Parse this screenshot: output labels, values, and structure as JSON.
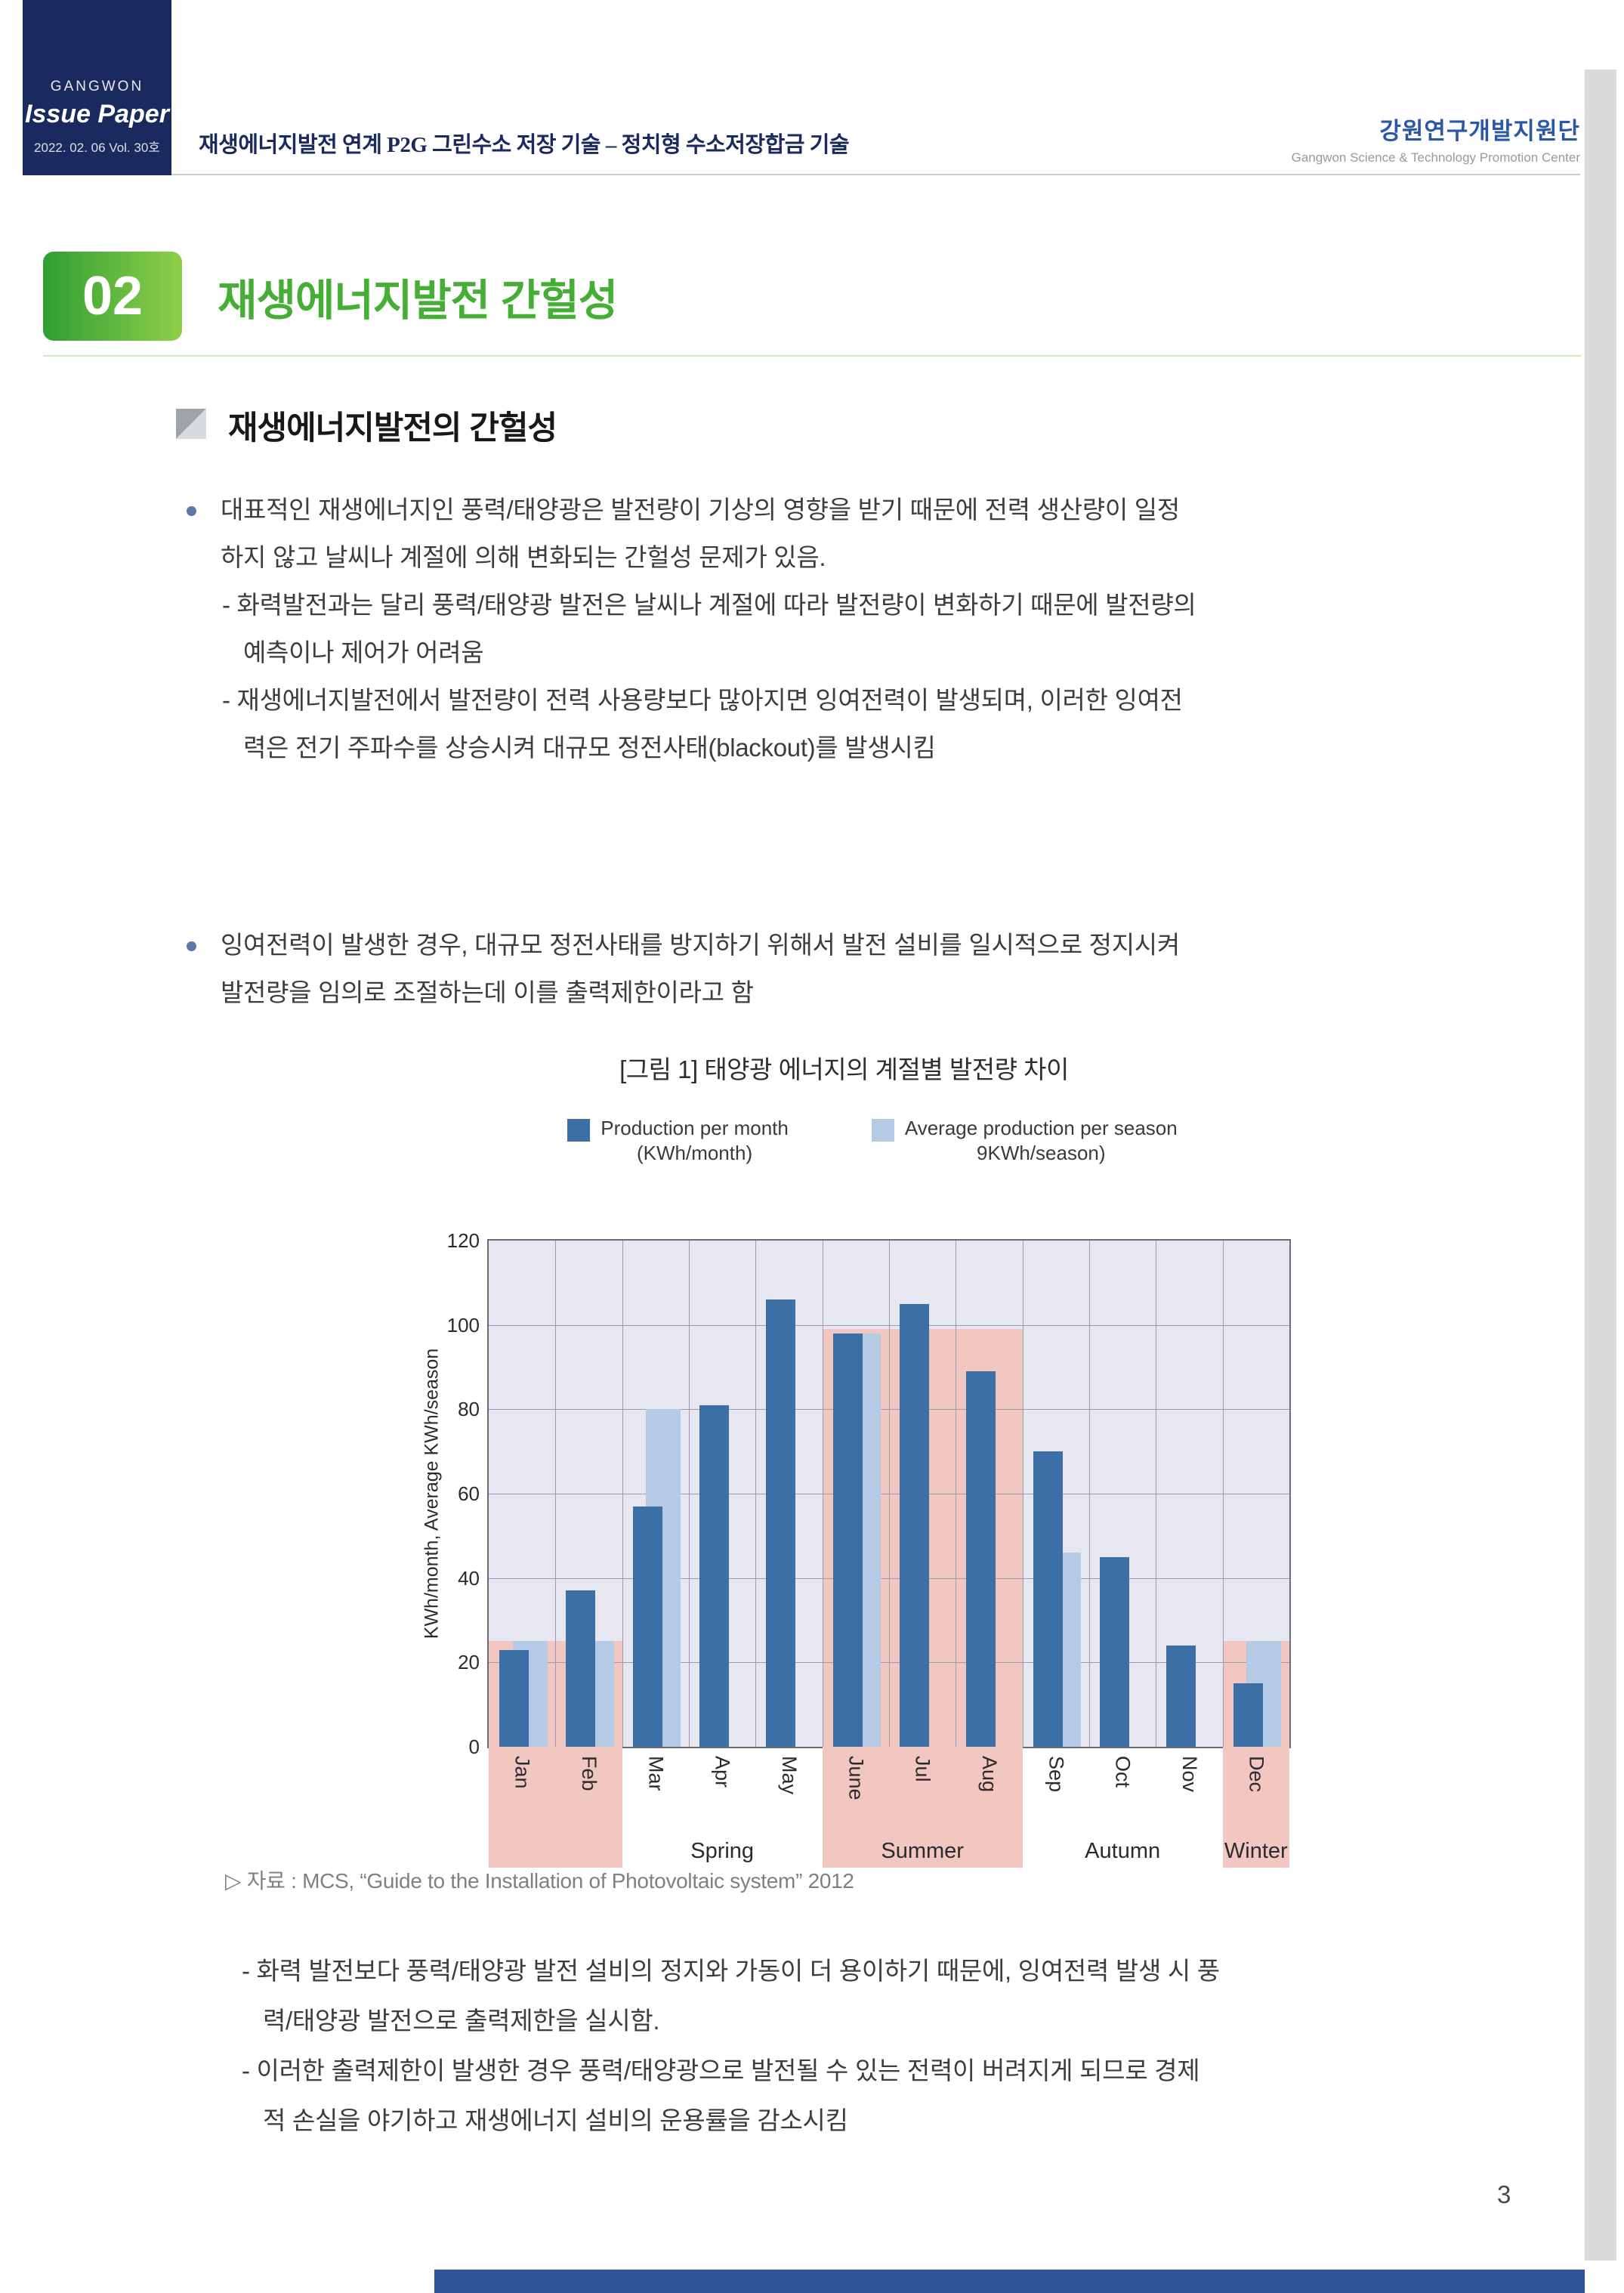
{
  "header": {
    "badge": {
      "brand": "GANGWON",
      "name": "Issue Paper",
      "meta": "2022. 02. 06  Vol. 30호"
    },
    "doc_title": "재생에너지발전 연계 P2G 그린수소 저장 기술 – 정치형 수소저장합금 기술",
    "org_kr": "강원연구개발지원단",
    "org_en": "Gangwon Science & Technology Promotion Center"
  },
  "section": {
    "number": "02",
    "title": "재생에너지발전 간헐성"
  },
  "subsection_title": "재생에너지발전의 간헐성",
  "bullet1_lines": [
    {
      "type": "main",
      "text": "대표적인 재생에너지인 풍력/태양광은 발전량이 기상의 영향을 받기 때문에 전력 생산량이 일정"
    },
    {
      "type": "main",
      "text": "하지 않고 날씨나 계절에 의해 변화되는 간헐성 문제가 있음."
    },
    {
      "type": "dash",
      "text": "- 화력발전과는 달리 풍력/태양광 발전은 날씨나 계절에 따라 발전량이 변화하기 때문에 발전량의"
    },
    {
      "type": "cont",
      "text": "예측이나 제어가 어려움"
    },
    {
      "type": "dash",
      "text": "- 재생에너지발전에서 발전량이 전력 사용량보다  많아지면 잉여전력이 발생되며, 이러한 잉여전"
    },
    {
      "type": "cont",
      "text": "력은 전기 주파수를 상승시켜 대규모 정전사태(blackout)를 발생시킴"
    }
  ],
  "bullet2_lines": [
    {
      "type": "main",
      "text": "잉여전력이 발생한 경우, 대규모 정전사태를 방지하기 위해서 발전 설비를 일시적으로 정지시켜"
    },
    {
      "type": "main",
      "text": "발전량을 임의로 조절하는데 이를 출력제한이라고 함"
    }
  ],
  "figure_caption": "[그림 1] 태양광 에너지의 계절별 발전량 차이",
  "source_note": "▷ 자료 : MCS, “Guide to the Installation of Photovoltaic system” 2012",
  "closing_lines": [
    {
      "type": "dash",
      "text": "- 화력 발전보다 풍력/태양광 발전 설비의 정지와 가동이 더 용이하기 때문에, 잉여전력 발생 시 풍"
    },
    {
      "type": "cont",
      "text": "력/태양광 발전으로 출력제한을 실시함."
    },
    {
      "type": "dash",
      "text": "- 이러한 출력제한이 발생한 경우 풍력/태양광으로 발전될 수 있는 전력이 버려지게 되므로 경제"
    },
    {
      "type": "cont",
      "text": "적 손실을 야기하고 재생에너지 설비의 운용률을 감소시킴"
    }
  ],
  "page_number": "3",
  "chart_data": {
    "type": "bar",
    "title": "[그림 1] 태양광 에너지의 계절별 발전량 차이",
    "ylabel": "KWh/month, Average KWh/season",
    "ylim": [
      0,
      120
    ],
    "yticks": [
      0,
      20,
      40,
      60,
      80,
      100,
      120
    ],
    "categories": [
      "Jan",
      "Feb",
      "Mar",
      "Apr",
      "May",
      "June",
      "Jul",
      "Aug",
      "Sep",
      "Oct",
      "Nov",
      "Dec"
    ],
    "series": [
      {
        "name": "Production per month",
        "name2": "(KWh/month)",
        "color": "#3c6fa5",
        "values": [
          23,
          37,
          57,
          81,
          106,
          98,
          105,
          89,
          70,
          45,
          24,
          15
        ]
      },
      {
        "name": "Average production per season",
        "name2": "9KWh/season)",
        "color": "#b5cbe5",
        "values": [
          25,
          25,
          80,
          null,
          null,
          98,
          null,
          null,
          46,
          null,
          null,
          25
        ]
      }
    ],
    "season_labels": [
      {
        "label": "Spring",
        "from": 2,
        "to": 4,
        "highlight": false
      },
      {
        "label": "Summer",
        "from": 5,
        "to": 7,
        "highlight": true
      },
      {
        "label": "Autumn",
        "from": 8,
        "to": 10,
        "highlight": false
      },
      {
        "label": "Winter",
        "from": 11,
        "to": 11,
        "highlight": true
      }
    ],
    "highlight_bands": [
      {
        "from": 0,
        "to": 1,
        "value": 25
      },
      {
        "from": 5,
        "to": 7,
        "value": 99
      },
      {
        "from": 11,
        "to": 11,
        "value": 25
      }
    ],
    "colors": {
      "plot_bg": "#e7e7f1",
      "grid": "#9b9bad",
      "band": "#f3c7c1",
      "axis": "#6a6a78"
    },
    "legend_position": "top",
    "grid": true
  },
  "colors": {
    "navy": "#1b2a5e",
    "org_blue": "#2b57a7",
    "green_dark": "#2f9e33",
    "green_light": "#8fd04a",
    "title_green": "#45ae35",
    "footer_blue": "#2e5496",
    "side_gray": "#dadada"
  }
}
